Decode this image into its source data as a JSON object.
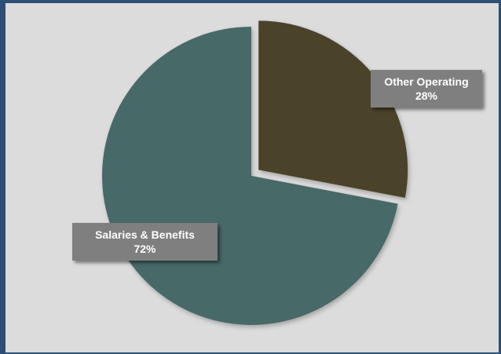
{
  "chart_data": {
    "type": "pie",
    "categories": [
      "Other Operating",
      "Salaries & Benefits"
    ],
    "values": [
      28,
      72
    ],
    "value_labels": [
      "28%",
      "72%"
    ],
    "colors": [
      "#4b4329",
      "#466967"
    ],
    "exploded": [
      "Other Operating"
    ],
    "legend": "none",
    "title": ""
  },
  "theme": {
    "frame_color": "#2d4f74",
    "panel_color": "#dcdcdc",
    "label_box_color": "#7f7f7f"
  }
}
